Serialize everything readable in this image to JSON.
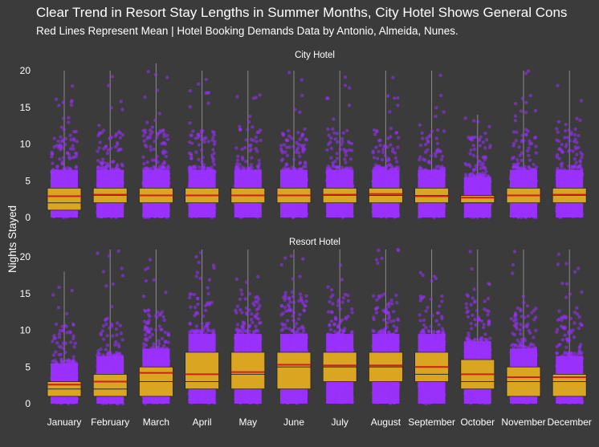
{
  "title": "Clear Trend in Resort Stay Lengths in Summer Months, City Hotel Shows General Cons",
  "subtitle": "Red Lines Represent Mean | Hotel Booking Demands Data by Antonio, Almeida, Nunes.",
  "colors": {
    "background": "#3b3b3b",
    "points": "#9b30ff",
    "box_fill": "#daa520",
    "mean_line": "#cc1f1f",
    "text": "#ffffff"
  },
  "chart_data": {
    "type": "box",
    "ylabel": "Nights Stayed",
    "xlabel": "",
    "ylim": [
      0,
      21
    ],
    "y_ticks": [
      0,
      5,
      10,
      15,
      20
    ],
    "grid": false,
    "categories": [
      "January",
      "February",
      "March",
      "April",
      "May",
      "June",
      "July",
      "August",
      "September",
      "October",
      "November",
      "December"
    ],
    "panels": [
      {
        "name": "City Hotel",
        "boxes": [
          {
            "q1": 1,
            "median": 2,
            "q3": 4,
            "mean": 2.9,
            "max_point": 20
          },
          {
            "q1": 2,
            "median": 3,
            "q3": 4,
            "mean": 3.1,
            "max_point": 20
          },
          {
            "q1": 2,
            "median": 3,
            "q3": 4,
            "mean": 3.0,
            "max_point": 21
          },
          {
            "q1": 2,
            "median": 3,
            "q3": 4,
            "mean": 3.0,
            "max_point": 20
          },
          {
            "q1": 2,
            "median": 3,
            "q3": 4,
            "mean": 3.0,
            "max_point": 20
          },
          {
            "q1": 2,
            "median": 3,
            "q3": 4,
            "mean": 3.0,
            "max_point": 20
          },
          {
            "q1": 2,
            "median": 3,
            "q3": 4,
            "mean": 3.1,
            "max_point": 20
          },
          {
            "q1": 2,
            "median": 3,
            "q3": 4,
            "mean": 3.2,
            "max_point": 20
          },
          {
            "q1": 2,
            "median": 3,
            "q3": 4,
            "mean": 2.9,
            "max_point": 20
          },
          {
            "q1": 2,
            "median": 2,
            "q3": 3,
            "mean": 2.7,
            "max_point": 14
          },
          {
            "q1": 2,
            "median": 3,
            "q3": 4,
            "mean": 3.0,
            "max_point": 20
          },
          {
            "q1": 2,
            "median": 3,
            "q3": 4,
            "mean": 3.1,
            "max_point": 20
          }
        ]
      },
      {
        "name": "Resort Hotel",
        "boxes": [
          {
            "q1": 1,
            "median": 2,
            "q3": 3,
            "mean": 2.6,
            "max_point": 18
          },
          {
            "q1": 1,
            "median": 2,
            "q3": 4,
            "mean": 3.0,
            "max_point": 21
          },
          {
            "q1": 1,
            "median": 3,
            "q3": 5,
            "mean": 4.2,
            "max_point": 21
          },
          {
            "q1": 2,
            "median": 3,
            "q3": 7,
            "mean": 4.0,
            "max_point": 21
          },
          {
            "q1": 2,
            "median": 4,
            "q3": 7,
            "mean": 4.3,
            "max_point": 21
          },
          {
            "q1": 2,
            "median": 5,
            "q3": 7,
            "mean": 5.3,
            "max_point": 21
          },
          {
            "q1": 3,
            "median": 5,
            "q3": 7,
            "mean": 5.2,
            "max_point": 21
          },
          {
            "q1": 3,
            "median": 5,
            "q3": 7,
            "mean": 5.2,
            "max_point": 21
          },
          {
            "q1": 3,
            "median": 4,
            "q3": 7,
            "mean": 5.0,
            "max_point": 21
          },
          {
            "q1": 2,
            "median": 3,
            "q3": 6,
            "mean": 4.0,
            "max_point": 21
          },
          {
            "q1": 1,
            "median": 3,
            "q3": 5,
            "mean": 3.6,
            "max_point": 21
          },
          {
            "q1": 1,
            "median": 3,
            "q3": 4,
            "mean": 3.6,
            "max_point": 21
          }
        ]
      }
    ]
  }
}
